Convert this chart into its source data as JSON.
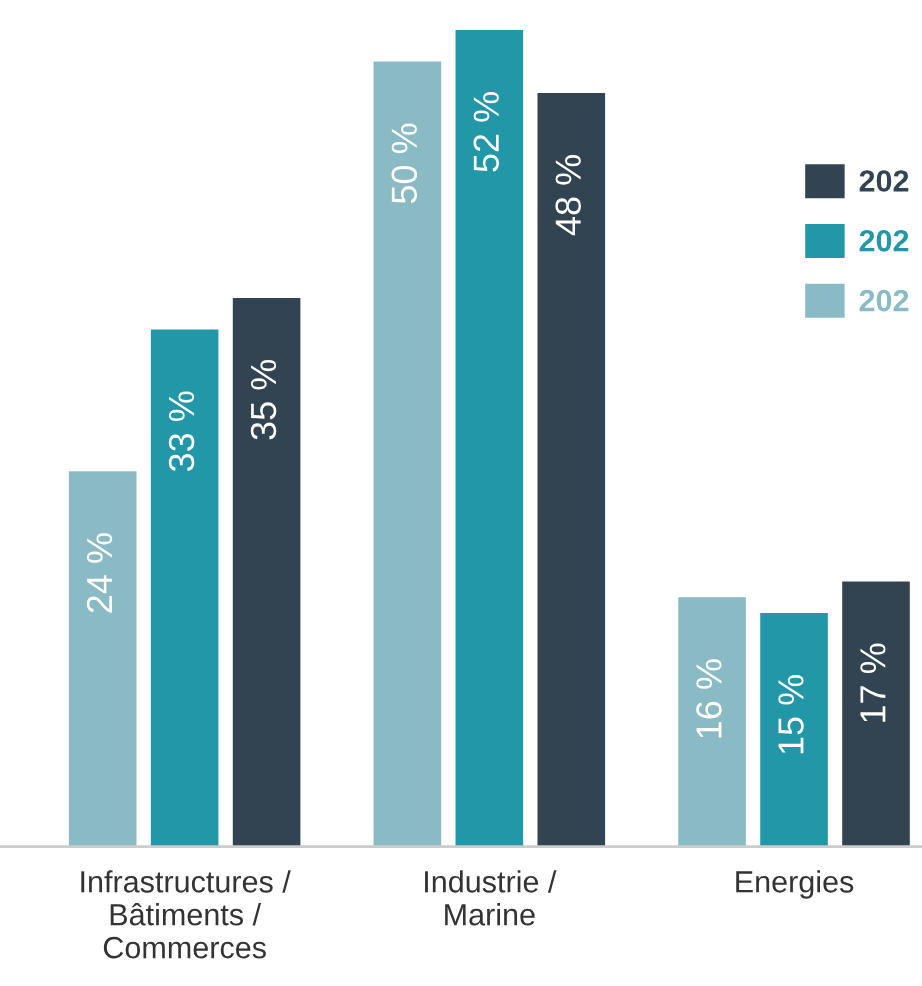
{
  "chart_data": {
    "type": "bar",
    "categories": [
      "Infrastructures /\nBâtiments /\nCommerces",
      "Industrie /\nMarine",
      "Energies"
    ],
    "series": [
      {
        "name": "202",
        "color": "#8abbc4",
        "values": [
          24,
          50,
          16
        ],
        "value_labels": [
          "24 %",
          "50 %",
          "16 %"
        ]
      },
      {
        "name": "202",
        "color": "#2197a8",
        "values": [
          33,
          52,
          15
        ],
        "value_labels": [
          "33 %",
          "52 %",
          "15 %"
        ]
      },
      {
        "name": "202",
        "color": "#324451",
        "values": [
          35,
          48,
          17
        ],
        "value_labels": [
          "35 %",
          "48 %",
          "17 %"
        ]
      }
    ],
    "legend": "top right",
    "grid": false
  }
}
